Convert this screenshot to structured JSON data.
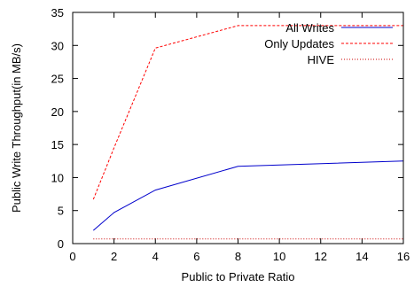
{
  "chart_data": {
    "type": "line",
    "title": "",
    "xlabel": "Public to Private Ratio",
    "ylabel": "Public Write Throughput(in MB/s)",
    "xlim": [
      0,
      16
    ],
    "ylim": [
      0,
      35
    ],
    "xticks": [
      0,
      2,
      4,
      6,
      8,
      10,
      12,
      14,
      16
    ],
    "yticks": [
      0,
      5,
      10,
      15,
      20,
      25,
      30,
      35
    ],
    "grid": false,
    "legend_position": "top-right",
    "series": [
      {
        "name": "All Writes",
        "color": "#0000cc",
        "style": "solid",
        "x": [
          1,
          2,
          4,
          8,
          16
        ],
        "y": [
          2.0,
          4.7,
          8.1,
          11.7,
          12.5
        ]
      },
      {
        "name": "Only Updates",
        "color": "#ff0000",
        "style": "dashed",
        "x": [
          1,
          2,
          4,
          8,
          16
        ],
        "y": [
          6.7,
          14.5,
          29.6,
          33.0,
          33.0
        ]
      },
      {
        "name": "HIVE",
        "color": "#cc0000",
        "style": "dotted",
        "x": [
          1,
          2,
          4,
          8,
          16
        ],
        "y": [
          0.7,
          0.7,
          0.7,
          0.7,
          0.7
        ]
      }
    ]
  }
}
